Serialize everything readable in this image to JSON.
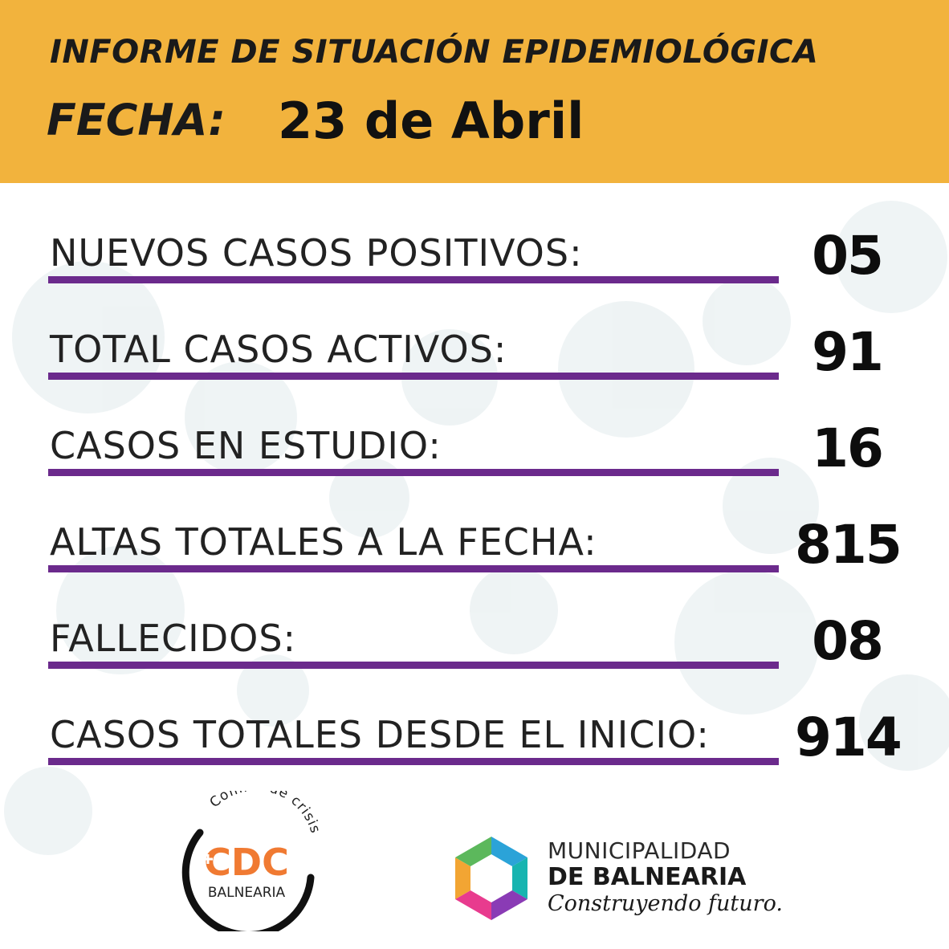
{
  "header": {
    "title": "INFORME DE SITUACIÓN EPIDEMIOLÓGICA",
    "date_label": "FECHA:",
    "date_value": "23 de Abril"
  },
  "stats": [
    {
      "label": "NUEVOS CASOS POSITIVOS:",
      "value": "05"
    },
    {
      "label": "TOTAL CASOS ACTIVOS:",
      "value": "91"
    },
    {
      "label": "CASOS EN ESTUDIO:",
      "value": "16"
    },
    {
      "label": "ALTAS TOTALES A LA FECHA:",
      "value": "815"
    },
    {
      "label": "FALLECIDOS:",
      "value": "08"
    },
    {
      "label": "CASOS TOTALES DESDE EL INICIO:",
      "value": "914"
    }
  ],
  "logos": {
    "cdc": {
      "arc_text": "Comité de crisis",
      "acronym": "CDC",
      "name": "BALNEARIA"
    },
    "municipality": {
      "line1": "MUNICIPALIDAD",
      "line2": "DE BALNEARIA",
      "tagline": "Construyendo futuro."
    }
  },
  "colors": {
    "header_bg": "#f2b33d",
    "underline": "#6b2a8c",
    "cdc_orange": "#f07a32",
    "virus_bg": "#9ab8c2"
  }
}
